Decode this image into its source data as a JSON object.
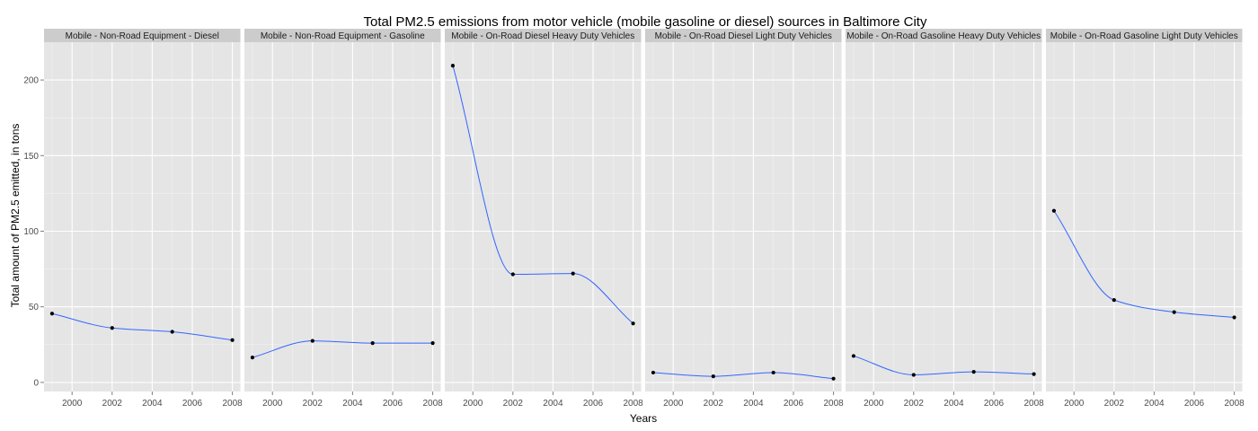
{
  "chart_data": {
    "type": "line",
    "title": "Total PM2.5 emissions from motor vehicle (mobile gasoline or diesel) sources in Baltimore City",
    "xlabel": "Years",
    "ylabel": "Total amount of PM2.5 emitted, in tons",
    "xlim": [
      1998.6,
      2008.4
    ],
    "ylim": [
      -6,
      225
    ],
    "x_ticks": [
      2000,
      2002,
      2004,
      2006,
      2008
    ],
    "x_tick_labels": [
      "2000",
      "2002",
      "2004",
      "2006",
      "2008"
    ],
    "y_ticks": [
      0,
      50,
      100,
      150,
      200
    ],
    "y_tick_labels": [
      "0",
      "50",
      "100",
      "150",
      "200"
    ],
    "grid": true,
    "facets": true,
    "x": [
      1999,
      2002,
      2005,
      2008
    ],
    "series": [
      {
        "name": "Mobile - Non-Road Equipment - Diesel",
        "values": [
          45.5,
          36,
          33.5,
          28
        ]
      },
      {
        "name": "Mobile - Non-Road Equipment - Gasoline",
        "values": [
          16.5,
          27.5,
          26,
          26
        ]
      },
      {
        "name": "Mobile - On-Road Diesel Heavy Duty Vehicles",
        "values": [
          209.5,
          71.5,
          72,
          39
        ]
      },
      {
        "name": "Mobile - On-Road Diesel Light Duty Vehicles",
        "values": [
          6.5,
          4,
          6.5,
          2.5
        ]
      },
      {
        "name": "Mobile - On-Road Gasoline Heavy Duty Vehicles",
        "values": [
          17.5,
          5,
          7,
          5.5
        ]
      },
      {
        "name": "Mobile - On-Road Gasoline Light Duty Vehicles",
        "values": [
          113.5,
          54.5,
          46.5,
          43
        ]
      }
    ],
    "colors": {
      "panel_background": "#e5e5e5",
      "strip_background": "#cccccc",
      "grid_major": "#ffffff",
      "grid_minor": "#f2f2f2",
      "line": "#3366ff",
      "point": "#000000",
      "tick_text": "#4d4d4d"
    }
  }
}
